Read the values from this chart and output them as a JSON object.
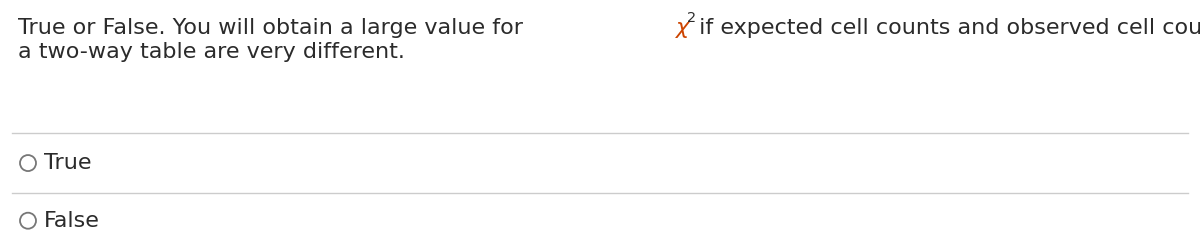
{
  "question_line1": "True or False. You will obtain a large value for ",
  "chi_symbol": "χ",
  "superscript": "2",
  "question_line1_end": " if expected cell counts and observed cell counts in any cell of",
  "question_line2": "a two-way table are very different.",
  "option1": "True",
  "option2": "False",
  "bg_color": "#ffffff",
  "text_color": "#2b2b2b",
  "chi_color": "#cc4400",
  "line_color": "#cccccc",
  "font_size": 16.0,
  "option_font_size": 16.0,
  "figwidth": 12.0,
  "figheight": 2.48,
  "dpi": 100
}
